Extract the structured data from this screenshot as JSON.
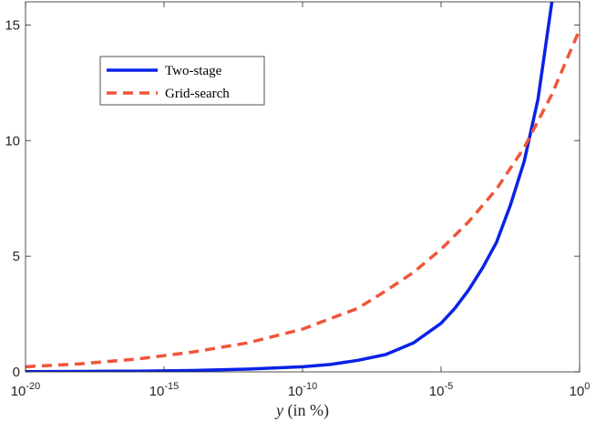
{
  "chart_data": {
    "type": "line",
    "title": "",
    "xlabel": "y (in %)",
    "xlabel_var": "y",
    "xlabel_rest": " (in %)",
    "ylabel": "",
    "xscale": "log",
    "xlim_exponent": [
      -20,
      0
    ],
    "ylim": [
      0,
      16
    ],
    "x_ticks": [
      {
        "base": "10",
        "exp": "-20",
        "value": -20
      },
      {
        "base": "10",
        "exp": "-15",
        "value": -15
      },
      {
        "base": "10",
        "exp": "-10",
        "value": -10
      },
      {
        "base": "10",
        "exp": "-5",
        "value": -5
      },
      {
        "base": "10",
        "exp": "0",
        "value": 0
      }
    ],
    "y_ticks": [
      {
        "label": "0",
        "value": 0
      },
      {
        "label": "5",
        "value": 5
      },
      {
        "label": "10",
        "value": 10
      },
      {
        "label": "15",
        "value": 15
      }
    ],
    "grid": false,
    "legend_position": "top-left",
    "series": [
      {
        "name": "Two-stage",
        "color": "#0a22e6",
        "style": "solid",
        "x_exponent": [
          -20,
          -18,
          -16,
          -14,
          -12,
          -10,
          -9,
          -8,
          -7,
          -6,
          -5,
          -4.5,
          -4,
          -3.5,
          -3,
          -2.5,
          -2,
          -1.5,
          -1
        ],
        "values": [
          0.01,
          0.02,
          0.03,
          0.06,
          0.12,
          0.22,
          0.32,
          0.5,
          0.75,
          1.25,
          2.1,
          2.75,
          3.55,
          4.5,
          5.6,
          7.2,
          9.1,
          11.8,
          16.0
        ]
      },
      {
        "name": "Grid-search",
        "color": "#f0553a",
        "style": "dashed",
        "x_exponent": [
          -20,
          -18,
          -16,
          -14,
          -12,
          -10,
          -9,
          -8,
          -7,
          -6,
          -5,
          -4,
          -3,
          -2,
          -1,
          0
        ],
        "values": [
          0.22,
          0.35,
          0.55,
          0.85,
          1.25,
          1.85,
          2.3,
          2.75,
          3.5,
          4.3,
          5.3,
          6.5,
          7.9,
          9.7,
          12.0,
          14.8
        ]
      }
    ]
  }
}
